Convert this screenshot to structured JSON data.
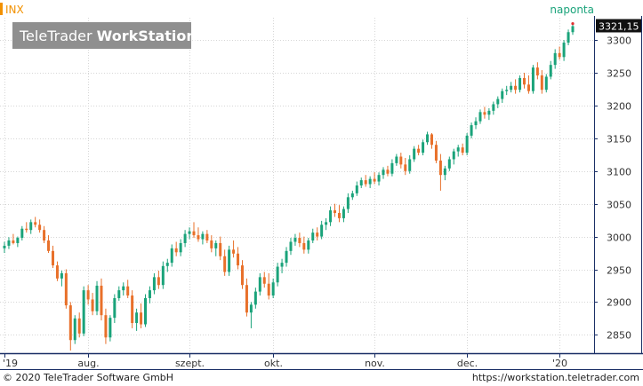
{
  "header": {
    "symbol": "INX",
    "period": "naponta"
  },
  "watermark": {
    "brand_part1": "TeleTrader ",
    "brand_part2": "WorkStation"
  },
  "footer": {
    "copyright": "© 2020 TeleTrader Software GmbH",
    "url": "https://workstation.teletrader.com"
  },
  "colors": {
    "up": "#1aa37a",
    "down": "#e8702a",
    "accent": "#f29100",
    "frame": "#1a2f66"
  },
  "chart_data": {
    "type": "candlestick",
    "ylim": [
      2822,
      3334
    ],
    "y_ticks": [
      2850,
      2900,
      2950,
      3000,
      3050,
      3100,
      3150,
      3200,
      3250,
      3300
    ],
    "y_tick_labels": [
      "2850",
      "2900",
      "2950",
      "3000",
      "3050",
      "3100",
      "3150",
      "3200",
      "3250",
      "3300"
    ],
    "x_labels": [
      {
        "label": "'19",
        "index": 0
      },
      {
        "label": "aug.",
        "index": 19
      },
      {
        "label": "szept.",
        "index": 42
      },
      {
        "label": "okt.",
        "index": 61
      },
      {
        "label": "nov.",
        "index": 84
      },
      {
        "label": "dec.",
        "index": 105
      },
      {
        "label": "'20",
        "index": 126
      }
    ],
    "last_price_label": "3321,15",
    "last_price": 3321.15,
    "candles": [
      [
        2982,
        2992,
        2975,
        2986
      ],
      [
        2986,
        2999,
        2981,
        2994
      ],
      [
        2994,
        3004,
        2988,
        2990
      ],
      [
        2990,
        3000,
        2984,
        2998
      ],
      [
        2998,
        3016,
        2994,
        3012
      ],
      [
        3012,
        3022,
        3006,
        3010
      ],
      [
        3010,
        3026,
        3004,
        3022
      ],
      [
        3022,
        3030,
        3014,
        3018
      ],
      [
        3018,
        3026,
        3006,
        3010
      ],
      [
        3010,
        3016,
        2990,
        2994
      ],
      [
        2994,
        3002,
        2975,
        2978
      ],
      [
        2978,
        2986,
        2952,
        2956
      ],
      [
        2956,
        2962,
        2932,
        2936
      ],
      [
        2936,
        2948,
        2924,
        2944
      ],
      [
        2944,
        2950,
        2890,
        2895
      ],
      [
        2895,
        2900,
        2826,
        2842
      ],
      [
        2842,
        2880,
        2836,
        2875
      ],
      [
        2875,
        2884,
        2846,
        2852
      ],
      [
        2852,
        2924,
        2848,
        2918
      ],
      [
        2918,
        2926,
        2896,
        2904
      ],
      [
        2904,
        2914,
        2880,
        2886
      ],
      [
        2886,
        2932,
        2880,
        2925
      ],
      [
        2925,
        2936,
        2872,
        2880
      ],
      [
        2880,
        2890,
        2836,
        2846
      ],
      [
        2846,
        2880,
        2840,
        2876
      ],
      [
        2876,
        2912,
        2868,
        2906
      ],
      [
        2906,
        2924,
        2902,
        2918
      ],
      [
        2918,
        2930,
        2910,
        2924
      ],
      [
        2924,
        2934,
        2906,
        2910
      ],
      [
        2910,
        2918,
        2860,
        2868
      ],
      [
        2868,
        2890,
        2856,
        2884
      ],
      [
        2884,
        2898,
        2860,
        2866
      ],
      [
        2866,
        2912,
        2862,
        2906
      ],
      [
        2906,
        2924,
        2898,
        2918
      ],
      [
        2918,
        2944,
        2912,
        2938
      ],
      [
        2938,
        2948,
        2920,
        2926
      ],
      [
        2926,
        2962,
        2920,
        2955
      ],
      [
        2955,
        2966,
        2946,
        2960
      ],
      [
        2960,
        2988,
        2954,
        2982
      ],
      [
        2982,
        2992,
        2970,
        2976
      ],
      [
        2976,
        2996,
        2970,
        2990
      ],
      [
        2990,
        3010,
        2984,
        3004
      ],
      [
        3004,
        3014,
        2996,
        3008
      ],
      [
        3008,
        3022,
        2998,
        3002
      ],
      [
        3002,
        3014,
        2992,
        2996
      ],
      [
        2996,
        3008,
        2988,
        3004
      ],
      [
        3004,
        3010,
        2990,
        2994
      ],
      [
        2994,
        3002,
        2976,
        2982
      ],
      [
        2982,
        2994,
        2970,
        2990
      ],
      [
        2990,
        3000,
        2964,
        2970
      ],
      [
        2970,
        2980,
        2940,
        2946
      ],
      [
        2946,
        2986,
        2940,
        2980
      ],
      [
        2980,
        2994,
        2968,
        2974
      ],
      [
        2974,
        2984,
        2950,
        2956
      ],
      [
        2956,
        2964,
        2920,
        2926
      ],
      [
        2926,
        2936,
        2878,
        2884
      ],
      [
        2884,
        2900,
        2860,
        2896
      ],
      [
        2896,
        2922,
        2890,
        2916
      ],
      [
        2916,
        2944,
        2910,
        2938
      ],
      [
        2938,
        2946,
        2922,
        2928
      ],
      [
        2928,
        2944,
        2904,
        2910
      ],
      [
        2910,
        2936,
        2906,
        2930
      ],
      [
        2930,
        2960,
        2924,
        2954
      ],
      [
        2954,
        2966,
        2944,
        2960
      ],
      [
        2960,
        2984,
        2954,
        2978
      ],
      [
        2978,
        2998,
        2972,
        2992
      ],
      [
        2992,
        3004,
        2986,
        2998
      ],
      [
        2998,
        3006,
        2984,
        2990
      ],
      [
        2990,
        3000,
        2974,
        2980
      ],
      [
        2980,
        2998,
        2974,
        2994
      ],
      [
        2994,
        3012,
        2990,
        3006
      ],
      [
        3006,
        3014,
        2994,
        3000
      ],
      [
        3000,
        3024,
        2996,
        3018
      ],
      [
        3018,
        3028,
        3010,
        3022
      ],
      [
        3022,
        3046,
        3016,
        3040
      ],
      [
        3040,
        3050,
        3030,
        3036
      ],
      [
        3036,
        3048,
        3022,
        3028
      ],
      [
        3028,
        3046,
        3022,
        3042
      ],
      [
        3042,
        3066,
        3036,
        3060
      ],
      [
        3060,
        3070,
        3056,
        3066
      ],
      [
        3066,
        3084,
        3062,
        3078
      ],
      [
        3078,
        3090,
        3074,
        3086
      ],
      [
        3086,
        3094,
        3076,
        3080
      ],
      [
        3080,
        3092,
        3074,
        3088
      ],
      [
        3088,
        3098,
        3080,
        3084
      ],
      [
        3084,
        3098,
        3078,
        3094
      ],
      [
        3094,
        3106,
        3088,
        3102
      ],
      [
        3102,
        3108,
        3092,
        3096
      ],
      [
        3096,
        3118,
        3092,
        3112
      ],
      [
        3112,
        3126,
        3108,
        3122
      ],
      [
        3122,
        3128,
        3104,
        3110
      ],
      [
        3110,
        3120,
        3094,
        3100
      ],
      [
        3100,
        3124,
        3096,
        3118
      ],
      [
        3118,
        3138,
        3114,
        3134
      ],
      [
        3134,
        3140,
        3124,
        3128
      ],
      [
        3128,
        3148,
        3124,
        3144
      ],
      [
        3144,
        3160,
        3140,
        3156
      ],
      [
        3156,
        3158,
        3134,
        3140
      ],
      [
        3140,
        3146,
        3112,
        3116
      ],
      [
        3116,
        3126,
        3070,
        3094
      ],
      [
        3094,
        3108,
        3086,
        3104
      ],
      [
        3104,
        3122,
        3100,
        3118
      ],
      [
        3118,
        3134,
        3110,
        3130
      ],
      [
        3130,
        3140,
        3122,
        3136
      ],
      [
        3136,
        3142,
        3124,
        3128
      ],
      [
        3128,
        3158,
        3124,
        3154
      ],
      [
        3154,
        3174,
        3150,
        3170
      ],
      [
        3170,
        3182,
        3164,
        3176
      ],
      [
        3176,
        3194,
        3172,
        3190
      ],
      [
        3190,
        3198,
        3180,
        3186
      ],
      [
        3186,
        3196,
        3178,
        3192
      ],
      [
        3192,
        3206,
        3186,
        3202
      ],
      [
        3202,
        3214,
        3196,
        3210
      ],
      [
        3210,
        3226,
        3204,
        3222
      ],
      [
        3222,
        3230,
        3216,
        3224
      ],
      [
        3224,
        3236,
        3220,
        3230
      ],
      [
        3230,
        3240,
        3218,
        3224
      ],
      [
        3224,
        3246,
        3220,
        3242
      ],
      [
        3242,
        3250,
        3226,
        3232
      ],
      [
        3232,
        3246,
        3218,
        3222
      ],
      [
        3222,
        3262,
        3218,
        3258
      ],
      [
        3258,
        3266,
        3240,
        3246
      ],
      [
        3246,
        3254,
        3218,
        3224
      ],
      [
        3224,
        3248,
        3220,
        3244
      ],
      [
        3244,
        3268,
        3240,
        3262
      ],
      [
        3262,
        3286,
        3256,
        3280
      ],
      [
        3280,
        3290,
        3270,
        3274
      ],
      [
        3274,
        3300,
        3268,
        3296
      ],
      [
        3296,
        3316,
        3292,
        3312
      ],
      [
        3312,
        3325,
        3308,
        3321.15
      ]
    ]
  }
}
